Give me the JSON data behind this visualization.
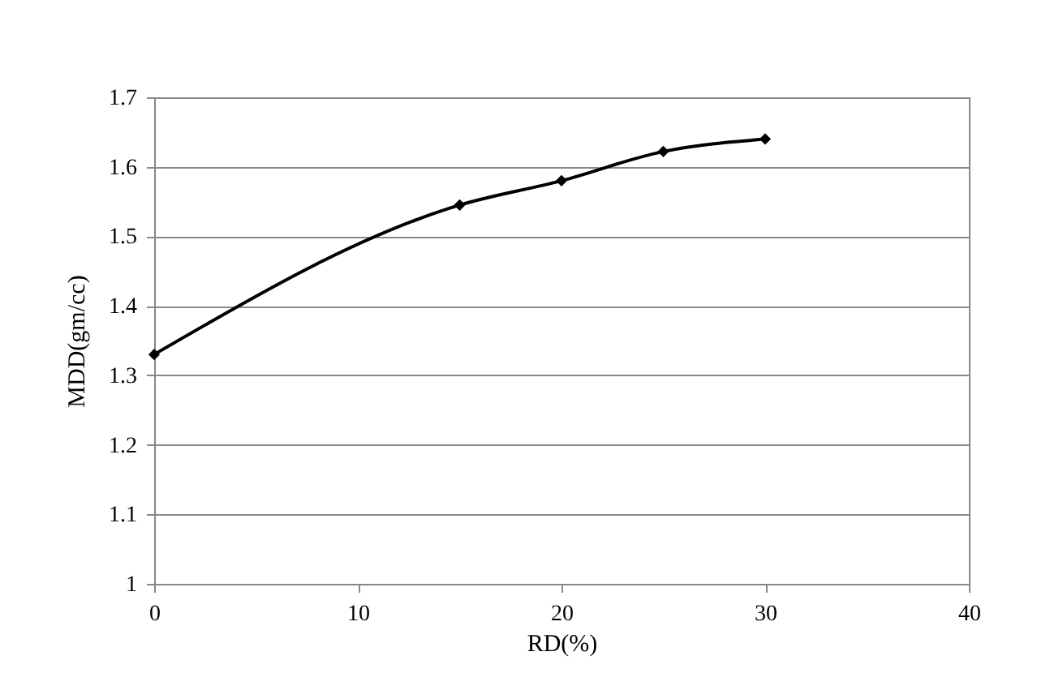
{
  "chart_data": {
    "type": "line",
    "xlabel": "RD(%)",
    "ylabel": "MDD(gm/cc)",
    "x": [
      0,
      15,
      20,
      25,
      30
    ],
    "series": [
      {
        "color": "#000000",
        "values": [
          1.33,
          1.545,
          1.58,
          1.622,
          1.64
        ]
      }
    ],
    "xlim": [
      0,
      40
    ],
    "xticks": [
      0,
      10,
      20,
      30,
      40
    ],
    "ylim": [
      1,
      1.7
    ],
    "yticks": [
      1,
      1.1,
      1.2,
      1.3,
      1.4,
      1.5,
      1.6,
      1.7
    ],
    "grid": "y",
    "marker": "diamond",
    "line_style": "solid"
  }
}
